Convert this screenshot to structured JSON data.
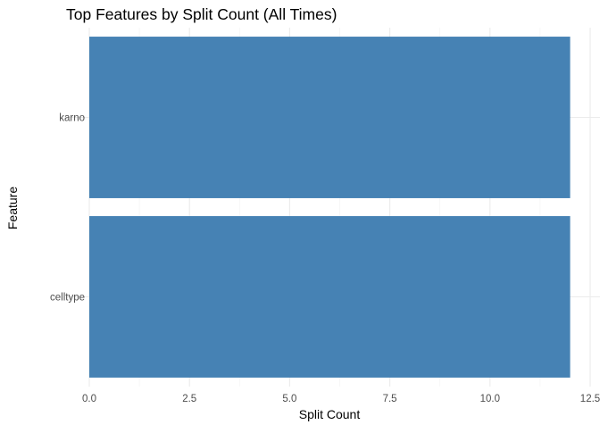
{
  "chart_data": {
    "type": "bar",
    "orientation": "horizontal",
    "title": "Top Features by Split Count (All Times)",
    "xlabel": "Split Count",
    "ylabel": "Feature",
    "categories": [
      "karno",
      "celltype"
    ],
    "values": [
      12,
      12
    ],
    "xlim": [
      0,
      12.5
    ],
    "xticks": [
      0,
      2.5,
      5,
      7.5,
      10,
      12.5
    ],
    "xtick_labels": [
      "0.0",
      "2.5",
      "5.0",
      "7.5",
      "10.0",
      "12.5"
    ],
    "grid": true,
    "bar_color": "#4682B4"
  }
}
